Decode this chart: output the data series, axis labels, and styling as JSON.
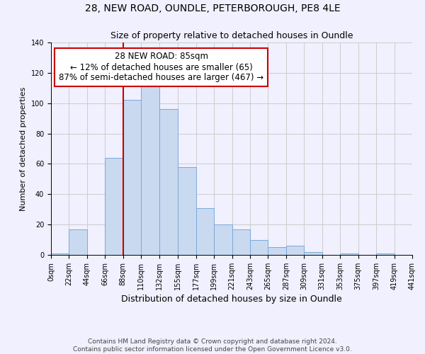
{
  "title": "28, NEW ROAD, OUNDLE, PETERBOROUGH, PE8 4LE",
  "subtitle": "Size of property relative to detached houses in Oundle",
  "xlabel": "Distribution of detached houses by size in Oundle",
  "ylabel": "Number of detached properties",
  "bin_edges": [
    0,
    22,
    44,
    66,
    88,
    110,
    132,
    155,
    177,
    199,
    221,
    243,
    265,
    287,
    309,
    331,
    353,
    375,
    397,
    419,
    441
  ],
  "bin_counts": [
    1,
    17,
    0,
    64,
    102,
    112,
    96,
    58,
    31,
    20,
    17,
    10,
    5,
    6,
    2,
    0,
    1,
    0,
    1,
    0
  ],
  "bar_facecolor": "#c9d9f0",
  "bar_edgecolor": "#7aaad8",
  "vline_x": 88,
  "vline_color": "#cc0000",
  "annotation_box_text": "28 NEW ROAD: 85sqm\n← 12% of detached houses are smaller (65)\n87% of semi-detached houses are larger (467) →",
  "annotation_box_facecolor": "#ffffff",
  "annotation_box_edgecolor": "#cc0000",
  "ylim": [
    0,
    140
  ],
  "yticks": [
    0,
    20,
    40,
    60,
    80,
    100,
    120,
    140
  ],
  "grid_color": "#cccccc",
  "background_color": "#f0f0ff",
  "footnote": "Contains HM Land Registry data © Crown copyright and database right 2024.\nContains public sector information licensed under the Open Government Licence v3.0.",
  "title_fontsize": 10,
  "subtitle_fontsize": 9,
  "xlabel_fontsize": 9,
  "ylabel_fontsize": 8,
  "tick_fontsize": 7,
  "annotation_fontsize": 8.5,
  "footnote_fontsize": 6.5
}
